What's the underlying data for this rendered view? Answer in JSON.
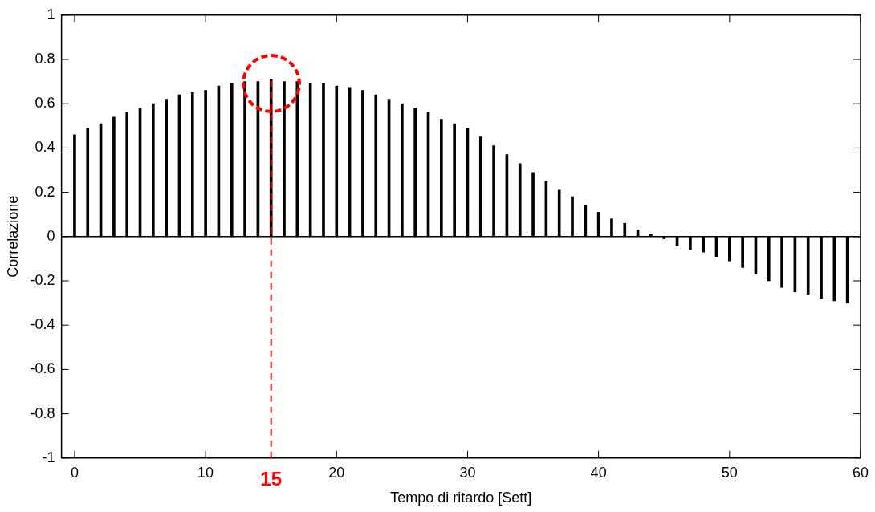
{
  "chart_data": {
    "type": "bar",
    "xlabel": "Tempo di ritardo [Sett]",
    "ylabel": "Correlazione",
    "x": [
      0,
      1,
      2,
      3,
      4,
      5,
      6,
      7,
      8,
      9,
      10,
      11,
      12,
      13,
      14,
      15,
      16,
      17,
      18,
      19,
      20,
      21,
      22,
      23,
      24,
      25,
      26,
      27,
      28,
      29,
      30,
      31,
      32,
      33,
      34,
      35,
      36,
      37,
      38,
      39,
      40,
      41,
      42,
      43,
      44,
      45,
      46,
      47,
      48,
      49,
      50,
      51,
      52,
      53,
      54,
      55,
      56,
      57,
      58,
      59
    ],
    "values": [
      0.46,
      0.49,
      0.51,
      0.54,
      0.56,
      0.58,
      0.6,
      0.62,
      0.64,
      0.65,
      0.66,
      0.68,
      0.69,
      0.7,
      0.7,
      0.71,
      0.7,
      0.7,
      0.69,
      0.69,
      0.68,
      0.67,
      0.66,
      0.64,
      0.62,
      0.6,
      0.58,
      0.56,
      0.53,
      0.51,
      0.49,
      0.45,
      0.41,
      0.37,
      0.33,
      0.29,
      0.25,
      0.21,
      0.18,
      0.14,
      0.11,
      0.08,
      0.06,
      0.03,
      0.01,
      -0.01,
      -0.04,
      -0.06,
      -0.07,
      -0.09,
      -0.11,
      -0.14,
      -0.17,
      -0.2,
      -0.23,
      -0.25,
      -0.26,
      -0.28,
      -0.29,
      -0.3
    ],
    "color": "#000000",
    "xlim": [
      -1,
      60
    ],
    "xticks": [
      0,
      10,
      20,
      30,
      40,
      50,
      60
    ],
    "ylim": [
      -1,
      1
    ],
    "yticks": [
      -1,
      -0.8,
      -0.6,
      -0.4,
      -0.2,
      0,
      0.2,
      0.4,
      0.6,
      0.8,
      1
    ],
    "legend": false,
    "ref_lines": [
      {
        "axis": "x",
        "value": 15,
        "label": "15",
        "color": "#ff0000",
        "line_style": "dashed"
      }
    ]
  }
}
